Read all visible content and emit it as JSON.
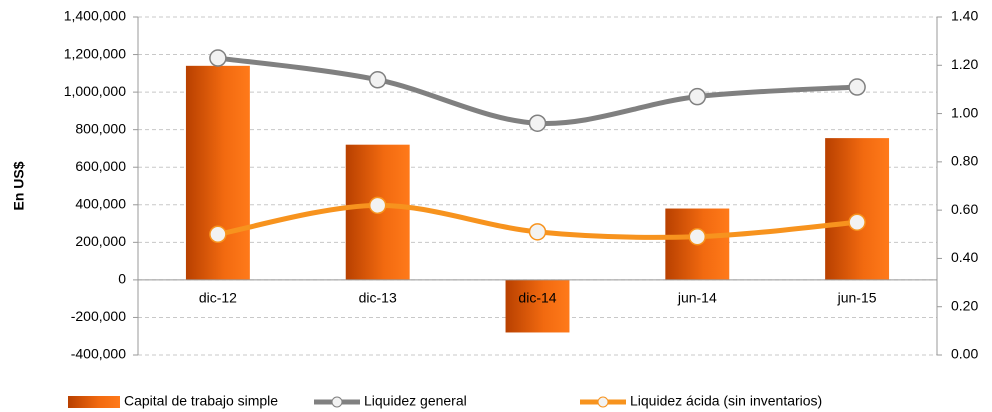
{
  "chart_data": {
    "type": "bar",
    "categories": [
      "dic-12",
      "dic-13",
      "dic-14",
      "jun-14",
      "jun-15"
    ],
    "ylabel": "En US$",
    "ylim": [
      -400000,
      1400000
    ],
    "yticks": [
      {
        "value": -400000,
        "label": "-400,000"
      },
      {
        "value": -200000,
        "label": "-200,000"
      },
      0,
      {
        "value": 200000,
        "label": "200,000"
      },
      {
        "value": 400000,
        "label": "400,000"
      },
      {
        "value": 600000,
        "label": "600,000"
      },
      {
        "value": 800000,
        "label": "800,000"
      },
      {
        "value": 1000000,
        "label": "1,000,000"
      },
      {
        "value": 1200000,
        "label": "1,200,000"
      },
      {
        "value": 1400000,
        "label": "1,400,000"
      }
    ],
    "y2lim": [
      0,
      1.4
    ],
    "y2ticks": [
      {
        "value": 0,
        "label": "0.00"
      },
      {
        "value": 0.2,
        "label": "0.20"
      },
      {
        "value": 0.4,
        "label": "0.40"
      },
      {
        "value": 0.6,
        "label": "0.60"
      },
      {
        "value": 0.8,
        "label": "0.80"
      },
      {
        "value": 1.0,
        "label": "1.00"
      },
      {
        "value": 1.2,
        "label": "1.20"
      },
      {
        "value": 1.4,
        "label": "1.40"
      }
    ],
    "grid": true,
    "legend": "bottom",
    "series": [
      {
        "name": "Capital de trabajo simple",
        "type": "bar",
        "color": "#f26a10",
        "values": [
          1140000,
          720000,
          -280000,
          380000,
          755000
        ]
      },
      {
        "name": "Liquidez general",
        "type": "line",
        "axis": "y2",
        "color": "#808080",
        "values": [
          1.23,
          1.14,
          0.96,
          1.07,
          1.11
        ]
      },
      {
        "name": "Liquidez ácida (sin inventarios)",
        "type": "line",
        "axis": "y2",
        "color": "#f7931e",
        "values": [
          0.5,
          0.62,
          0.51,
          0.49,
          0.55
        ]
      }
    ]
  }
}
